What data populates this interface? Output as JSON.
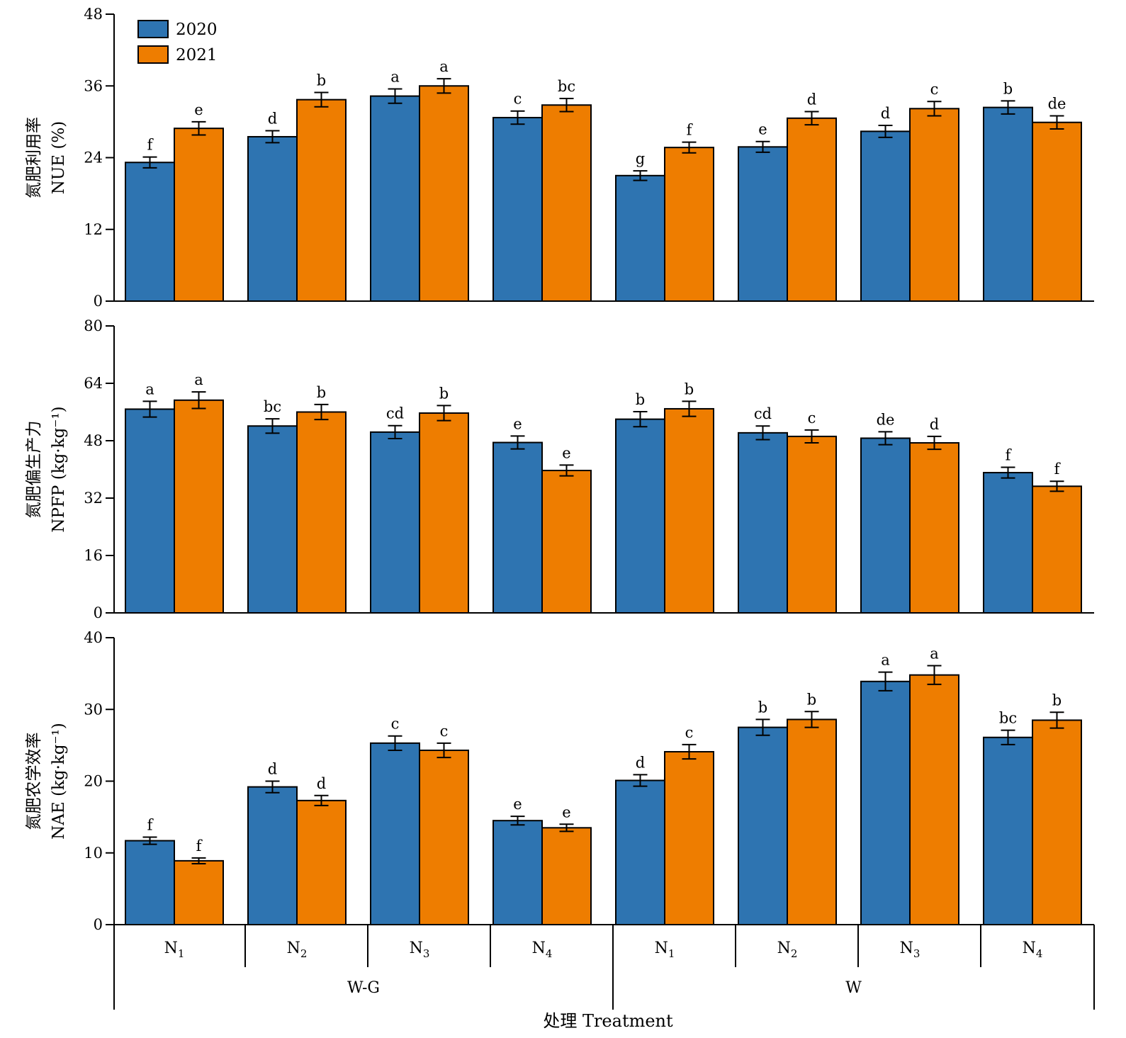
{
  "chart_data": [
    {
      "type": "bar",
      "ylabel_cn": "氮肥利用率",
      "ylabel": "NUE (%)",
      "ylim": [
        0,
        48
      ],
      "yticks": [
        0,
        12,
        24,
        36,
        48
      ],
      "groups": [
        "W-G",
        "W"
      ],
      "categories": [
        "N1",
        "N2",
        "N3",
        "N4",
        "N1",
        "N2",
        "N3",
        "N4"
      ],
      "series": [
        {
          "name": "2020",
          "color": "#2e74b1",
          "values": [
            23.2,
            27.5,
            34.3,
            30.7,
            21.0,
            25.8,
            28.4,
            32.4
          ],
          "errors": [
            0.9,
            1.0,
            1.2,
            1.1,
            0.8,
            0.9,
            1.0,
            1.1
          ],
          "letters": [
            "f",
            "d",
            "a",
            "c",
            "g",
            "e",
            "d",
            "b"
          ]
        },
        {
          "name": "2021",
          "color": "#ee7d00",
          "values": [
            28.9,
            33.7,
            36.0,
            32.8,
            25.7,
            30.6,
            32.2,
            29.9
          ],
          "errors": [
            1.1,
            1.2,
            1.2,
            1.1,
            0.9,
            1.1,
            1.2,
            1.1
          ],
          "letters": [
            "e",
            "b",
            "a",
            "bc",
            "f",
            "d",
            "c",
            "de"
          ]
        }
      ]
    },
    {
      "type": "bar",
      "ylabel_cn": "氮肥偏生产力",
      "ylabel": "NPFP (kg·kg⁻¹)",
      "ylim": [
        0,
        80
      ],
      "yticks": [
        0,
        16,
        32,
        48,
        64,
        80
      ],
      "groups": [
        "W-G",
        "W"
      ],
      "categories": [
        "N1",
        "N2",
        "N3",
        "N4",
        "N1",
        "N2",
        "N3",
        "N4"
      ],
      "series": [
        {
          "name": "2020",
          "color": "#2e74b1",
          "values": [
            56.8,
            52.1,
            50.4,
            47.5,
            54.0,
            50.2,
            48.7,
            39.1
          ],
          "errors": [
            2.2,
            2.0,
            1.8,
            1.8,
            2.1,
            1.9,
            1.8,
            1.5
          ],
          "letters": [
            "a",
            "bc",
            "cd",
            "e",
            "b",
            "cd",
            "de",
            "f"
          ]
        },
        {
          "name": "2021",
          "color": "#ee7d00",
          "values": [
            59.3,
            56.0,
            55.7,
            39.7,
            56.9,
            49.2,
            47.4,
            35.3
          ],
          "errors": [
            2.3,
            2.1,
            2.1,
            1.5,
            2.1,
            1.8,
            1.8,
            1.4
          ],
          "letters": [
            "a",
            "b",
            "b",
            "e",
            "b",
            "c",
            "d",
            "f"
          ]
        }
      ]
    },
    {
      "type": "bar",
      "ylabel_cn": "氮肥农学效率",
      "ylabel": "NAE (kg·kg⁻¹)",
      "ylim": [
        0,
        40
      ],
      "yticks": [
        0,
        10,
        20,
        30,
        40
      ],
      "groups": [
        "W-G",
        "W"
      ],
      "categories": [
        "N1",
        "N2",
        "N3",
        "N4",
        "N1",
        "N2",
        "N3",
        "N4"
      ],
      "series": [
        {
          "name": "2020",
          "color": "#2e74b1",
          "values": [
            11.7,
            19.2,
            25.3,
            14.5,
            20.1,
            27.5,
            33.9,
            26.1
          ],
          "errors": [
            0.5,
            0.8,
            1.0,
            0.6,
            0.8,
            1.1,
            1.3,
            1.0
          ],
          "letters": [
            "f",
            "d",
            "c",
            "e",
            "d",
            "b",
            "a",
            "bc"
          ]
        },
        {
          "name": "2021",
          "color": "#ee7d00",
          "values": [
            8.9,
            17.3,
            24.3,
            13.5,
            24.1,
            28.6,
            34.8,
            28.5
          ],
          "errors": [
            0.4,
            0.7,
            1.0,
            0.5,
            1.0,
            1.1,
            1.3,
            1.1
          ],
          "letters": [
            "f",
            "d",
            "c",
            "e",
            "c",
            "b",
            "a",
            "b"
          ]
        }
      ]
    }
  ],
  "legend": [
    {
      "label": "2020",
      "color": "#2e74b1"
    },
    {
      "label": "2021",
      "color": "#ee7d00"
    }
  ],
  "x_categories": [
    {
      "main": "N",
      "sub": "1"
    },
    {
      "main": "N",
      "sub": "2"
    },
    {
      "main": "N",
      "sub": "3"
    },
    {
      "main": "N",
      "sub": "4"
    },
    {
      "main": "N",
      "sub": "1"
    },
    {
      "main": "N",
      "sub": "2"
    },
    {
      "main": "N",
      "sub": "3"
    },
    {
      "main": "N",
      "sub": "4"
    }
  ],
  "x_groups": [
    "W-G",
    "W"
  ],
  "x_title": "处理 Treatment"
}
